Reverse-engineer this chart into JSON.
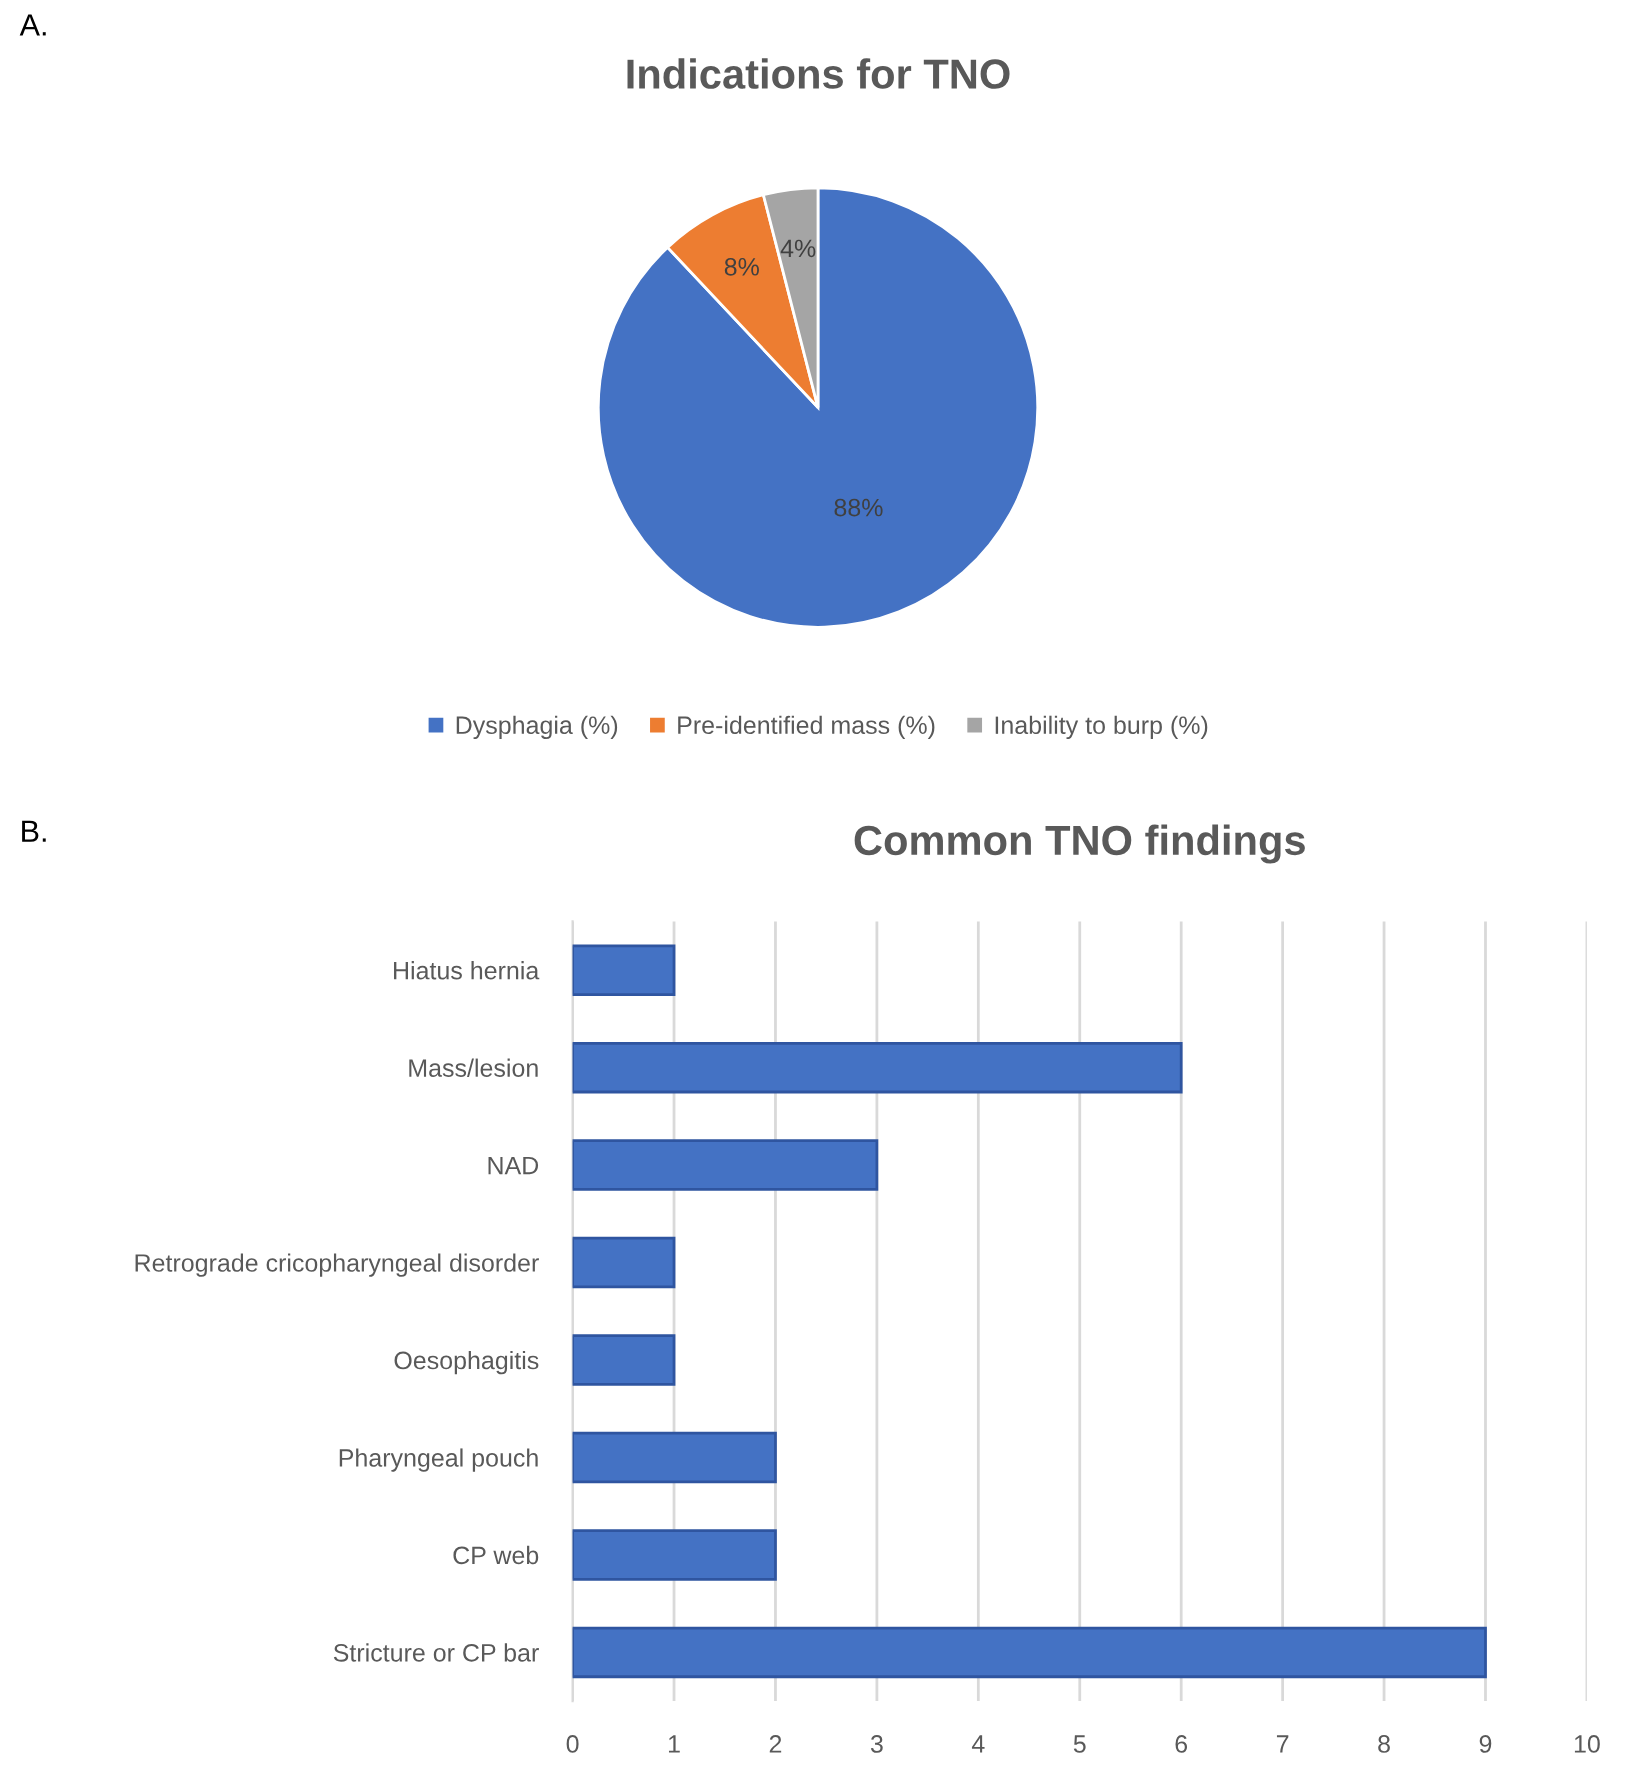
{
  "chart_data": [
    {
      "type": "pie",
      "title": "Indications for TNO",
      "annotations": [
        "A."
      ],
      "categories": [
        "Dysphagia (%)",
        "Pre-identified mass (%)",
        "Inability to burp (%)"
      ],
      "values": [
        88,
        8,
        4
      ],
      "colors": [
        "#4472c4",
        "#ed7d31",
        "#a5a5a5"
      ],
      "value_labels": [
        "88%",
        "8%",
        "4%"
      ],
      "legend": "bottom"
    },
    {
      "type": "bar",
      "orientation": "horizontal",
      "title": "Common TNO findings",
      "annotations": [
        "B."
      ],
      "categories": [
        "Hiatus hernia",
        "Mass/lesion",
        "NAD",
        "Retrograde cricopharyngeal disorder",
        "Oesophagitis",
        "Pharyngeal pouch",
        "CP web",
        "Stricture or CP bar"
      ],
      "values": [
        1,
        6,
        3,
        1,
        1,
        2,
        2,
        9
      ],
      "color": "#4472c4",
      "xlim": [
        0,
        10
      ],
      "xticks": [
        0,
        1,
        2,
        3,
        4,
        5,
        6,
        7,
        8,
        9,
        10
      ],
      "grid": "x"
    }
  ]
}
